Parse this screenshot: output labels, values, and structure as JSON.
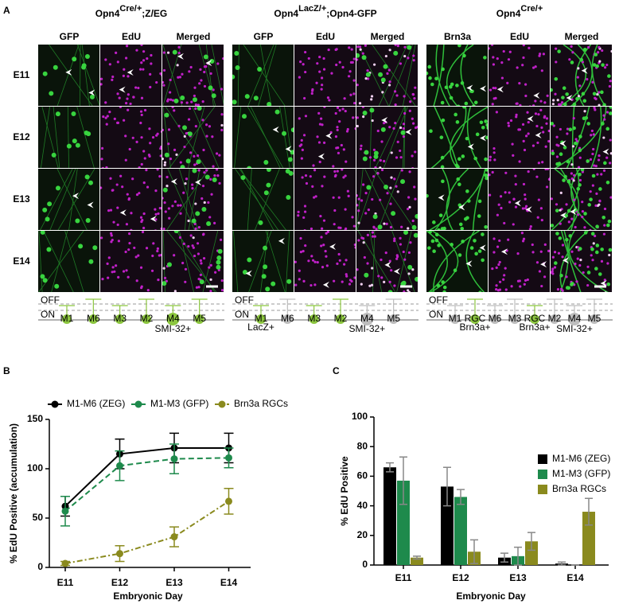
{
  "panel_a": {
    "label": "A",
    "rows": [
      "E11",
      "E12",
      "E13",
      "E14"
    ],
    "on_label": "ON",
    "off_label": "OFF",
    "groups": [
      {
        "title": {
          "base": "Opn4",
          "sup": "Cre/+",
          "rest": ";Z/EG"
        },
        "columns": [
          "GFP",
          "EdU",
          "Merged"
        ],
        "cells": [
          {
            "label": "M1",
            "color": "#8cc63f"
          },
          {
            "label": "M6",
            "color": "#8cc63f"
          },
          {
            "label": "M3",
            "color": "#8cc63f"
          },
          {
            "label": "M2",
            "color": "#8cc63f"
          },
          {
            "label": "M4",
            "sub": "SMI-32+",
            "color": "#8cc63f"
          },
          {
            "label": "M5",
            "color": "#8cc63f"
          }
        ]
      },
      {
        "title": {
          "base": "Opn4",
          "sup": "LacZ/+",
          "rest": ";Opn4-GFP"
        },
        "columns": [
          "GFP",
          "EdU",
          "Merged"
        ],
        "cells": [
          {
            "label": "M1",
            "sub": "LacZ+",
            "color": "#8cc63f"
          },
          {
            "label": "M6",
            "color": "#bdbdbd"
          },
          {
            "label": "M3",
            "color": "#8cc63f"
          },
          {
            "label": "M2",
            "color": "#8cc63f"
          },
          {
            "label": "M4",
            "sub": "SMI-32+",
            "color": "#bdbdbd"
          },
          {
            "label": "M5",
            "color": "#bdbdbd"
          }
        ]
      },
      {
        "title": {
          "base": "Opn4",
          "sup": "Cre/+"
        },
        "columns": [
          "Brn3a",
          "EdU",
          "Merged"
        ],
        "cells": [
          {
            "label": "M1",
            "color": "#bdbdbd"
          },
          {
            "label": "RGC",
            "sub": "Brn3a+",
            "color": "#8cc63f"
          },
          {
            "label": "M6",
            "color": "#bdbdbd"
          },
          {
            "label": "M3",
            "color": "#bdbdbd"
          },
          {
            "label": "RGC",
            "sub": "Brn3a+",
            "color": "#8cc63f"
          },
          {
            "label": "M2",
            "color": "#bdbdbd"
          },
          {
            "label": "M4",
            "sub": "SMI-32+",
            "color": "#bdbdbd"
          },
          {
            "label": "M5",
            "color": "#bdbdbd"
          }
        ]
      }
    ]
  },
  "chart_data": [
    {
      "type": "line",
      "panel": "B",
      "y_label": "% EdU Positive (accumulation)",
      "x_label": "Embryonic Day",
      "categories": [
        "E11",
        "E12",
        "E13",
        "E14"
      ],
      "ylim": [
        0,
        150
      ],
      "yticks": [
        0,
        50,
        100,
        150
      ],
      "series": [
        {
          "name": "M1-M6 (ZEG)",
          "color": "#000000",
          "linestyle": "solid",
          "values": [
            62,
            115,
            121,
            121
          ],
          "errors": [
            10,
            15,
            15,
            15
          ]
        },
        {
          "name": "M1-M3 (GFP)",
          "color": "#1e8a4c",
          "linestyle": "dashed",
          "values": [
            57,
            103,
            110,
            111
          ],
          "errors": [
            15,
            15,
            15,
            10
          ]
        },
        {
          "name": "Brn3a RGCs",
          "color": "#8a8a1e",
          "linestyle": "dashdot",
          "values": [
            4,
            14,
            31,
            67
          ],
          "errors": [
            2,
            8,
            10,
            13
          ]
        }
      ]
    },
    {
      "type": "bar",
      "panel": "C",
      "y_label": "% EdU Positive",
      "x_label": "Embryonic Day",
      "categories": [
        "E11",
        "E12",
        "E13",
        "E14"
      ],
      "ylim": [
        0,
        100
      ],
      "yticks": [
        0,
        20,
        40,
        60,
        80,
        100
      ],
      "series": [
        {
          "name": "M1-M6 (ZEG)",
          "color": "#000000",
          "values": [
            66,
            53,
            5,
            1
          ],
          "errors": [
            3,
            13,
            3,
            1
          ]
        },
        {
          "name": "M1-M3 (GFP)",
          "color": "#1e8a4c",
          "values": [
            57,
            46,
            6,
            0
          ],
          "errors": [
            16,
            5,
            6,
            0
          ]
        },
        {
          "name": "Brn3a RGCs",
          "color": "#8a8a1e",
          "values": [
            5,
            9,
            16,
            36
          ],
          "errors": [
            1,
            8,
            6,
            9
          ]
        }
      ]
    }
  ]
}
